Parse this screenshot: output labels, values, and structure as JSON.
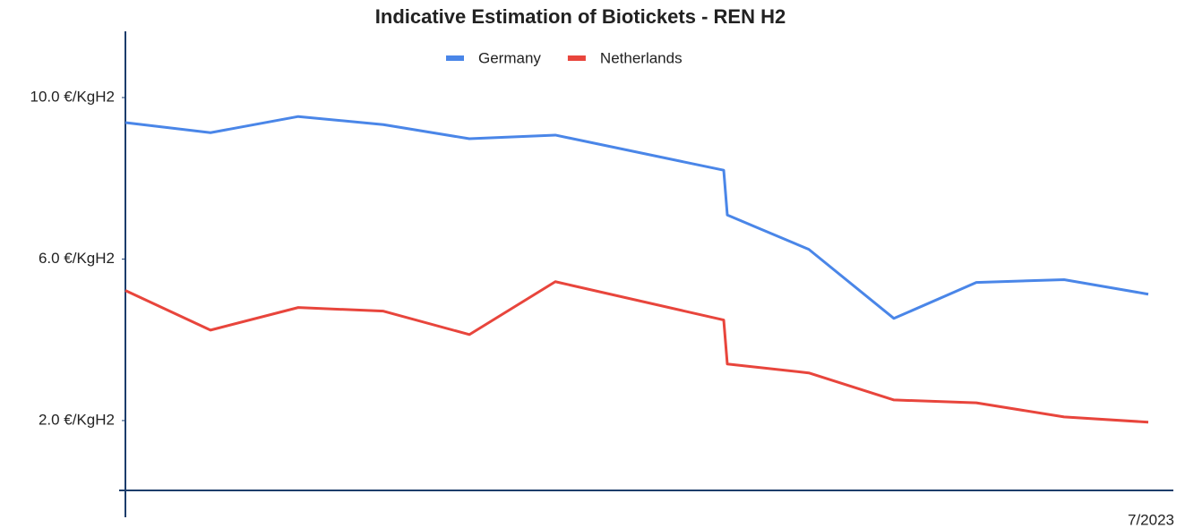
{
  "chart_data": {
    "type": "line",
    "title": "Indicative Estimation of Biotickets - REN H2",
    "categories": [
      null,
      null,
      null,
      null,
      null,
      null,
      null,
      null,
      null,
      null,
      null,
      null,
      "7/2023"
    ],
    "series": [
      {
        "name": "Germany",
        "color": "#4a86e8",
        "values": [
          9.38,
          9.13,
          9.53,
          9.33,
          8.98,
          9.07,
          8.2,
          7.09,
          6.24,
          4.53,
          5.42,
          5.49,
          5.13
        ]
      },
      {
        "name": "Netherlands",
        "color": "#e8453c",
        "values": [
          5.22,
          4.24,
          4.8,
          4.71,
          4.13,
          5.44,
          4.49,
          3.4,
          3.18,
          2.51,
          2.44,
          2.09,
          1.96
        ]
      }
    ],
    "ylim": [
      0.27,
      11.64
    ],
    "yticks": [
      {
        "value": 2,
        "label": "2.0 €/KgH2"
      },
      {
        "value": 6,
        "label": "6.0 €/KgH2"
      },
      {
        "value": 10,
        "label": "10.0 €/KgH2"
      }
    ],
    "legend": "top"
  }
}
